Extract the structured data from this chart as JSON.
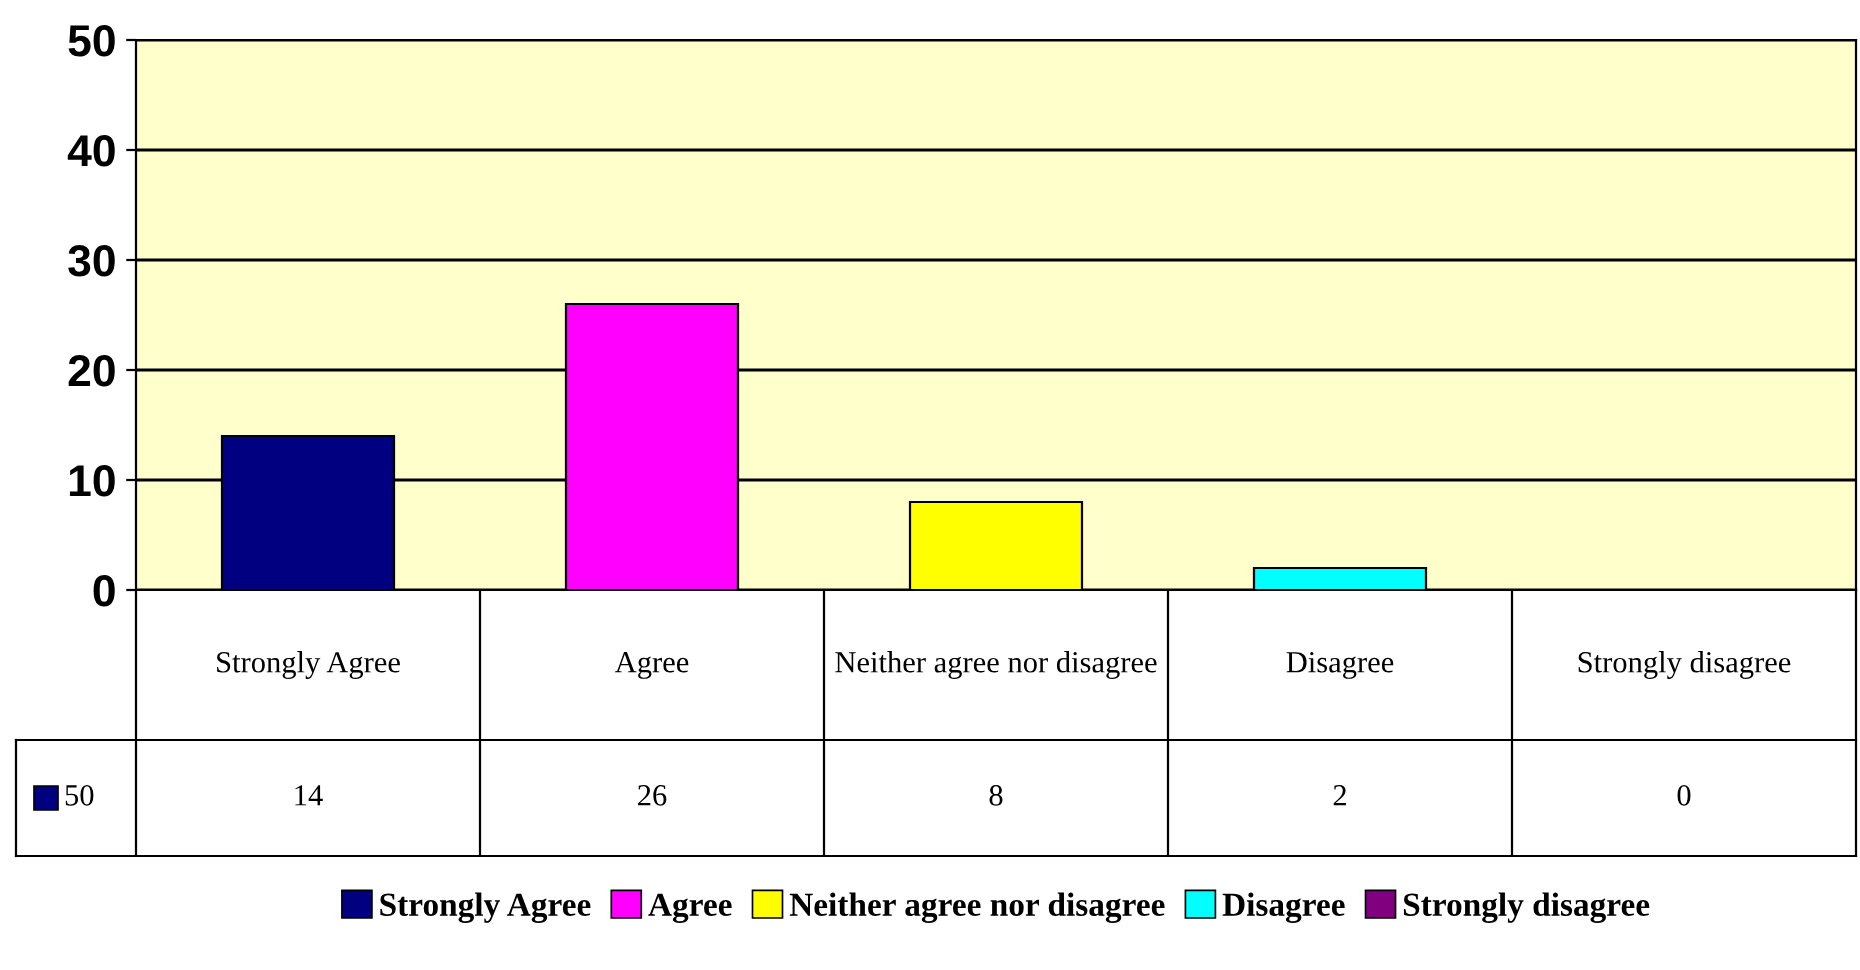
{
  "chart_data": {
    "type": "bar",
    "categories": [
      "Strongly Agree",
      "Agree",
      "Neither agree nor disagree",
      "Disagree",
      "Strongly disagree"
    ],
    "series": [
      {
        "name": "50",
        "colors": [
          "#000080",
          "#ff00ff",
          "#ffff00",
          "#00ffff",
          "#800080"
        ],
        "values": [
          14,
          26,
          8,
          2,
          0
        ]
      }
    ],
    "ylim": [
      0,
      50
    ],
    "yticks": [
      0,
      10,
      20,
      30,
      40,
      50
    ],
    "grid": "y",
    "data_labels": true,
    "legend": "bottom"
  }
}
